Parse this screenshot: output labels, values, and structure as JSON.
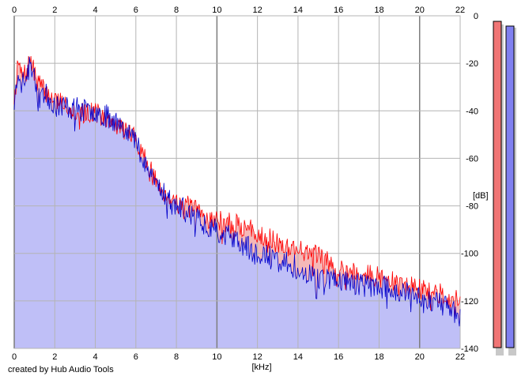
{
  "footer": {
    "credit": "created by Hub Audio Tools"
  },
  "chart_data": {
    "type": "area",
    "title": "",
    "xlabel": "[kHz]",
    "ylabel": "[dB]",
    "xlim": [
      0,
      22
    ],
    "ylim": [
      -140,
      0
    ],
    "x_ticks": [
      0,
      2,
      4,
      6,
      8,
      10,
      12,
      14,
      16,
      18,
      20,
      22
    ],
    "y_ticks": [
      0,
      -20,
      -40,
      -60,
      -80,
      -100,
      -120,
      -140
    ],
    "grid": true,
    "legend": "none",
    "colors": {
      "red_line": "#ff0000",
      "blue_line": "#0000cc",
      "blue_fill": "#bfbff7",
      "red_fill": "#f5b8b8",
      "grid": "#b4b4b4",
      "grid_major": "#7d7d7d"
    },
    "x": [
      0,
      0.2,
      0.4,
      0.6,
      0.8,
      1.0,
      1.5,
      2,
      2.5,
      3,
      3.5,
      4,
      4.5,
      5,
      5.5,
      6,
      6.5,
      7,
      7.5,
      8,
      8.5,
      9,
      9.5,
      10,
      11,
      12,
      13,
      14,
      15,
      16,
      17,
      18,
      19,
      20,
      21,
      22
    ],
    "series": [
      {
        "values": [
          -35,
          -20,
          -26,
          -24,
          -18,
          -25,
          -32,
          -35,
          -37,
          -40,
          -41,
          -40,
          -44,
          -46,
          -48,
          -52,
          -61,
          -70,
          -75,
          -78,
          -80,
          -82,
          -85,
          -86,
          -88,
          -91,
          -96,
          -98,
          -101,
          -106,
          -108,
          -110,
          -113,
          -115,
          -117,
          -120
        ]
      },
      {
        "values": [
          -37,
          -22,
          -28,
          -26,
          -20,
          -27,
          -33,
          -37,
          -38,
          -39,
          -40,
          -40,
          -42,
          -44,
          -47,
          -53,
          -62,
          -70,
          -76,
          -80,
          -82,
          -85,
          -88,
          -90,
          -95,
          -100,
          -103,
          -106,
          -110,
          -111,
          -113,
          -114,
          -116,
          -118,
          -121,
          -126
        ]
      }
    ],
    "meters": [
      {
        "color": "#f07575"
      },
      {
        "color": "#8080f0"
      }
    ]
  }
}
